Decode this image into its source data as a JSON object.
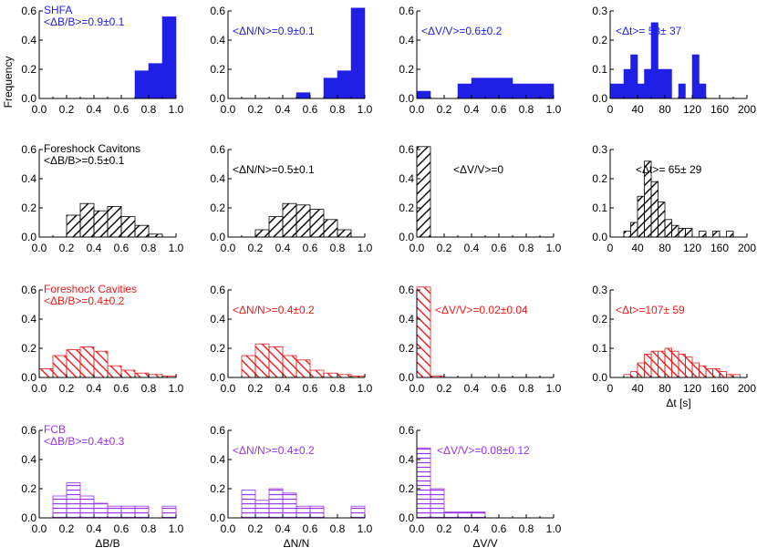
{
  "figure": {
    "ylabel_global": "Frequency"
  },
  "chart_data": [
    {
      "type": "bar",
      "group": "SHFA",
      "row_title": "SHFA",
      "annotation": "<ΔB/B>=0.9±0.1",
      "xlim": [
        0,
        1
      ],
      "x_ticks": [
        "0.0",
        "0.2",
        "0.4",
        "0.6",
        "0.8",
        "1.0"
      ],
      "ylim": [
        0,
        0.6
      ],
      "y_ticks": [
        "0.0",
        "0.2",
        "0.4",
        "0.6"
      ],
      "bins": [
        0.7,
        0.8,
        0.9
      ],
      "bin_width": 0.1,
      "values": [
        0.19,
        0.24,
        0.56
      ],
      "color": "#1f1fe6",
      "fill": "solid"
    },
    {
      "type": "bar",
      "group": "SHFA",
      "annotation": "<ΔN/N>=0.9±0.1",
      "xlim": [
        0,
        1
      ],
      "x_ticks": [
        "0.0",
        "0.2",
        "0.4",
        "0.6",
        "0.8",
        "1.0"
      ],
      "ylim": [
        0,
        0.6
      ],
      "y_ticks": [
        "0.0",
        "0.2",
        "0.4",
        "0.6"
      ],
      "bins": [
        0.5,
        0.6,
        0.7,
        0.8,
        0.9
      ],
      "bin_width": 0.1,
      "values": [
        0.04,
        0.0,
        0.14,
        0.19,
        0.62
      ],
      "color": "#1f1fe6",
      "fill": "solid"
    },
    {
      "type": "bar",
      "group": "SHFA",
      "annotation": "<ΔV/V>=0.6±0.2",
      "xlim": [
        0,
        1
      ],
      "x_ticks": [
        "0.0",
        "0.2",
        "0.4",
        "0.6",
        "0.8",
        "1.0"
      ],
      "ylim": [
        0,
        0.6
      ],
      "y_ticks": [
        "0.0",
        "0.2",
        "0.4",
        "0.6"
      ],
      "bins": [
        0.0,
        0.1,
        0.2,
        0.3,
        0.4,
        0.5,
        0.6,
        0.7,
        0.8,
        0.9
      ],
      "bin_width": 0.1,
      "values": [
        0.05,
        0.0,
        0.0,
        0.1,
        0.14,
        0.14,
        0.14,
        0.1,
        0.1,
        0.1
      ],
      "color": "#1f1fe6",
      "fill": "solid"
    },
    {
      "type": "bar",
      "group": "SHFA",
      "annotation": "<Δt>= 58± 37",
      "xlim": [
        0,
        200
      ],
      "x_ticks": [
        "0",
        "40",
        "80",
        "120",
        "160",
        "200"
      ],
      "ylim": [
        0,
        0.3
      ],
      "y_ticks": [
        "0.0",
        "0.1",
        "0.2",
        "0.3"
      ],
      "bins": [
        0,
        10,
        20,
        30,
        40,
        50,
        60,
        70,
        80,
        100,
        120,
        130
      ],
      "bin_width": 10,
      "values": [
        0.05,
        0.05,
        0.1,
        0.15,
        0.05,
        0.1,
        0.26,
        0.1,
        0.1,
        0.05,
        0.15,
        0.05
      ],
      "color": "#1f1fe6",
      "fill": "solid"
    },
    {
      "type": "bar",
      "group": "Foreshock Cavitons",
      "row_title": "Foreshock Cavitons",
      "annotation": "<ΔB/B>=0.5±0.1",
      "xlim": [
        0,
        1
      ],
      "x_ticks": [
        "0.0",
        "0.2",
        "0.4",
        "0.6",
        "0.8",
        "1.0"
      ],
      "ylim": [
        0,
        0.6
      ],
      "y_ticks": [
        "0.0",
        "0.2",
        "0.4",
        "0.6"
      ],
      "bins": [
        0.2,
        0.3,
        0.4,
        0.5,
        0.6,
        0.7,
        0.8
      ],
      "bin_width": 0.1,
      "values": [
        0.15,
        0.23,
        0.18,
        0.21,
        0.14,
        0.08,
        0.02
      ],
      "color": "#000000",
      "fill": "hatch-fwd"
    },
    {
      "type": "bar",
      "group": "Foreshock Cavitons",
      "annotation": "<ΔN/N>=0.5±0.1",
      "xlim": [
        0,
        1
      ],
      "x_ticks": [
        "0.0",
        "0.2",
        "0.4",
        "0.6",
        "0.8",
        "1.0"
      ],
      "ylim": [
        0,
        0.6
      ],
      "y_ticks": [
        "0.0",
        "0.2",
        "0.4",
        "0.6"
      ],
      "bins": [
        0.2,
        0.3,
        0.4,
        0.5,
        0.6,
        0.7,
        0.8
      ],
      "bin_width": 0.1,
      "values": [
        0.05,
        0.14,
        0.23,
        0.22,
        0.19,
        0.12,
        0.05
      ],
      "color": "#000000",
      "fill": "hatch-fwd"
    },
    {
      "type": "bar",
      "group": "Foreshock Cavitons",
      "annotation": "<ΔV/V>=0",
      "xlim": [
        0,
        1
      ],
      "x_ticks": [
        "0.0",
        "0.2",
        "0.4",
        "0.6",
        "0.8",
        "1.0"
      ],
      "ylim": [
        0,
        0.6
      ],
      "y_ticks": [
        "0.0",
        "0.2",
        "0.4",
        "0.6"
      ],
      "bins": [
        0.0
      ],
      "bin_width": 0.1,
      "values": [
        0.62
      ],
      "color": "#000000",
      "fill": "hatch-fwd"
    },
    {
      "type": "bar",
      "group": "Foreshock Cavitons",
      "annotation": "<Δt>= 65± 29",
      "xlim": [
        0,
        200
      ],
      "x_ticks": [
        "0",
        "40",
        "80",
        "120",
        "160",
        "200"
      ],
      "ylim": [
        0,
        0.3
      ],
      "y_ticks": [
        "0.0",
        "0.1",
        "0.2",
        "0.3"
      ],
      "bins": [
        20,
        30,
        40,
        50,
        60,
        70,
        80,
        90,
        100,
        110,
        130,
        150,
        170
      ],
      "bin_width": 10,
      "values": [
        0.02,
        0.05,
        0.14,
        0.26,
        0.19,
        0.12,
        0.06,
        0.04,
        0.03,
        0.03,
        0.02,
        0.02,
        0.02
      ],
      "color": "#000000",
      "fill": "hatch-fwd"
    },
    {
      "type": "bar",
      "group": "Foreshock Cavities",
      "row_title": "Foreshock Cavities",
      "annotation": "<ΔB/B>=0.4±0.2",
      "xlim": [
        0,
        1
      ],
      "x_ticks": [
        "0.0",
        "0.2",
        "0.4",
        "0.6",
        "0.8",
        "1.0"
      ],
      "ylim": [
        0,
        0.6
      ],
      "y_ticks": [
        "0.0",
        "0.2",
        "0.4",
        "0.6"
      ],
      "bins": [
        0.0,
        0.1,
        0.2,
        0.3,
        0.4,
        0.5,
        0.6,
        0.7,
        0.8,
        0.9
      ],
      "bin_width": 0.1,
      "values": [
        0.06,
        0.15,
        0.19,
        0.21,
        0.18,
        0.08,
        0.05,
        0.03,
        0.02,
        0.01
      ],
      "color": "#ee1a1a",
      "fill": "hatch-back"
    },
    {
      "type": "bar",
      "group": "Foreshock Cavities",
      "annotation": "<ΔN/N>=0.4±0.2",
      "xlim": [
        0,
        1
      ],
      "x_ticks": [
        "0.0",
        "0.2",
        "0.4",
        "0.6",
        "0.8",
        "1.0"
      ],
      "ylim": [
        0,
        0.6
      ],
      "y_ticks": [
        "0.0",
        "0.2",
        "0.4",
        "0.6"
      ],
      "bins": [
        0.1,
        0.2,
        0.3,
        0.4,
        0.5,
        0.6,
        0.7,
        0.8,
        0.9
      ],
      "bin_width": 0.1,
      "values": [
        0.15,
        0.23,
        0.21,
        0.15,
        0.12,
        0.05,
        0.03,
        0.02,
        0.01
      ],
      "color": "#ee1a1a",
      "fill": "hatch-back"
    },
    {
      "type": "bar",
      "group": "Foreshock Cavities",
      "annotation": "<ΔV/V>=0.02±0.04",
      "xlim": [
        0,
        1
      ],
      "x_ticks": [
        "0.0",
        "0.2",
        "0.4",
        "0.6",
        "0.8",
        "1.0"
      ],
      "ylim": [
        0,
        0.6
      ],
      "y_ticks": [
        "0.0",
        "0.2",
        "0.4",
        "0.6"
      ],
      "bins": [
        0.0,
        0.1
      ],
      "bin_width": 0.1,
      "values": [
        0.62,
        0.01
      ],
      "color": "#ee1a1a",
      "fill": "hatch-back"
    },
    {
      "type": "bar",
      "group": "Foreshock Cavities",
      "annotation": "<Δt>=107± 59",
      "xlim": [
        0,
        200
      ],
      "x_ticks": [
        "0",
        "40",
        "80",
        "120",
        "160",
        "200"
      ],
      "ylim": [
        0,
        0.3
      ],
      "y_ticks": [
        "0.0",
        "0.1",
        "0.2",
        "0.3"
      ],
      "xlabel": "Δt [s]",
      "bins": [
        20,
        30,
        40,
        50,
        60,
        70,
        80,
        90,
        100,
        110,
        120,
        130,
        140,
        150,
        160,
        170,
        180
      ],
      "bin_width": 10,
      "values": [
        0.01,
        0.02,
        0.05,
        0.08,
        0.09,
        0.09,
        0.1,
        0.09,
        0.08,
        0.07,
        0.05,
        0.04,
        0.03,
        0.03,
        0.02,
        0.01,
        0.01
      ],
      "color": "#ee1a1a",
      "fill": "hatch-back"
    },
    {
      "type": "bar",
      "group": "FCB",
      "row_title": "FCB",
      "annotation": "<ΔB/B>=0.4±0.3",
      "xlim": [
        0,
        1
      ],
      "x_ticks": [
        "0.0",
        "0.2",
        "0.4",
        "0.6",
        "0.8",
        "1.0"
      ],
      "ylim": [
        0,
        0.6
      ],
      "y_ticks": [
        "0.0",
        "0.2",
        "0.4",
        "0.6"
      ],
      "xlabel": "ΔB/B",
      "bins": [
        0.1,
        0.2,
        0.3,
        0.4,
        0.5,
        0.6,
        0.7,
        0.9
      ],
      "bin_width": 0.1,
      "values": [
        0.15,
        0.24,
        0.15,
        0.1,
        0.08,
        0.08,
        0.08,
        0.08
      ],
      "color": "#9933ee",
      "fill": "hatch-horiz"
    },
    {
      "type": "bar",
      "group": "FCB",
      "annotation": "<ΔN/N>=0.4±0.2",
      "xlim": [
        0,
        1
      ],
      "x_ticks": [
        "0.0",
        "0.2",
        "0.4",
        "0.6",
        "0.8",
        "1.0"
      ],
      "ylim": [
        0,
        0.6
      ],
      "y_ticks": [
        "0.0",
        "0.2",
        "0.4",
        "0.6"
      ],
      "xlabel": "ΔN/N",
      "bins": [
        0.1,
        0.2,
        0.3,
        0.4,
        0.5,
        0.6,
        0.9
      ],
      "bin_width": 0.1,
      "values": [
        0.19,
        0.12,
        0.2,
        0.17,
        0.08,
        0.08,
        0.08
      ],
      "color": "#9933ee",
      "fill": "hatch-horiz"
    },
    {
      "type": "bar",
      "group": "FCB",
      "annotation": "<ΔV/V>=0.08±0.12",
      "xlim": [
        0,
        1
      ],
      "x_ticks": [
        "0.0",
        "0.2",
        "0.4",
        "0.6",
        "0.8",
        "1.0"
      ],
      "ylim": [
        0,
        0.6
      ],
      "y_ticks": [
        "0.0",
        "0.2",
        "0.4",
        "0.6"
      ],
      "xlabel": "ΔV/V",
      "bins": [
        0.0,
        0.1,
        0.2,
        0.3,
        0.4
      ],
      "bin_width": 0.1,
      "values": [
        0.48,
        0.2,
        0.04,
        0.04,
        0.04
      ],
      "color": "#9933ee",
      "fill": "hatch-horiz"
    }
  ]
}
